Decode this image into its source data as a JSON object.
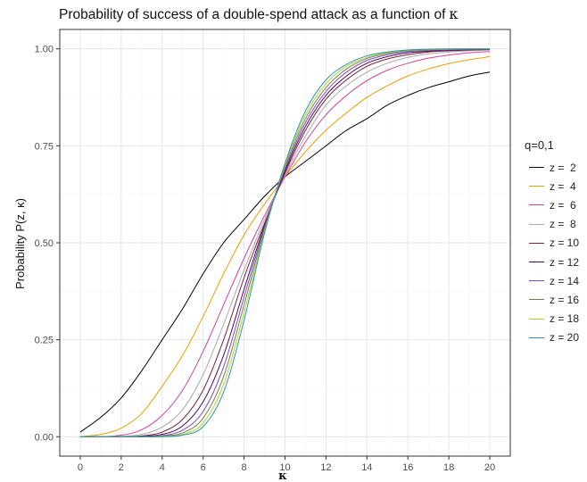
{
  "chart_data": {
    "type": "line",
    "title": "Probability of success of a double-spend attack as a function of",
    "title_symbol": "κ",
    "xlabel": "κ",
    "ylabel": "Probability  P(z, κ)",
    "xlim": [
      -1,
      21
    ],
    "ylim": [
      -0.05,
      1.05
    ],
    "x_ticks": [
      0,
      2,
      4,
      6,
      8,
      10,
      12,
      14,
      16,
      18,
      20
    ],
    "y_ticks": [
      0.0,
      0.25,
      0.5,
      0.75,
      1.0
    ],
    "y_tick_labels": [
      "0.00",
      "0.25",
      "0.50",
      "0.75",
      "1.00"
    ],
    "grid": true,
    "legend_title": "q=0,1",
    "legend_position": "right",
    "x": [
      0,
      1,
      2,
      3,
      4,
      5,
      6,
      7,
      8,
      9,
      10,
      11,
      12,
      13,
      14,
      15,
      16,
      17,
      18,
      19,
      20
    ],
    "series": [
      {
        "name": "z =  2",
        "color": "#000000",
        "values": [
          0.012,
          0.05,
          0.1,
          0.17,
          0.25,
          0.33,
          0.42,
          0.5,
          0.56,
          0.62,
          0.67,
          0.71,
          0.75,
          0.79,
          0.82,
          0.855,
          0.88,
          0.9,
          0.915,
          0.93,
          0.94
        ]
      },
      {
        "name": "z =  4",
        "color": "#e6a000",
        "values": [
          0.0,
          0.006,
          0.022,
          0.06,
          0.13,
          0.21,
          0.31,
          0.42,
          0.52,
          0.6,
          0.67,
          0.735,
          0.79,
          0.835,
          0.875,
          0.905,
          0.93,
          0.948,
          0.962,
          0.972,
          0.98
        ]
      },
      {
        "name": "z =  6",
        "color": "#d63fa0",
        "values": [
          0.0,
          0.0,
          0.004,
          0.018,
          0.055,
          0.12,
          0.22,
          0.34,
          0.46,
          0.57,
          0.67,
          0.76,
          0.83,
          0.88,
          0.918,
          0.945,
          0.963,
          0.976,
          0.984,
          0.99,
          0.993
        ]
      },
      {
        "name": "z =  8",
        "color": "#a9a9a9",
        "values": [
          0.0,
          0.0,
          0.001,
          0.006,
          0.025,
          0.07,
          0.16,
          0.29,
          0.43,
          0.56,
          0.675,
          0.775,
          0.855,
          0.905,
          0.94,
          0.963,
          0.978,
          0.987,
          0.992,
          0.995,
          0.997
        ]
      },
      {
        "name": "z = 10",
        "color": "#7a1f3d",
        "values": [
          0.0,
          0.0,
          0.0,
          0.002,
          0.012,
          0.045,
          0.12,
          0.25,
          0.41,
          0.55,
          0.68,
          0.79,
          0.87,
          0.92,
          0.955,
          0.974,
          0.985,
          0.992,
          0.995,
          0.997,
          0.998
        ]
      },
      {
        "name": "z = 12",
        "color": "#4b0a5e",
        "values": [
          0.0,
          0.0,
          0.0,
          0.001,
          0.006,
          0.028,
          0.09,
          0.21,
          0.38,
          0.545,
          0.685,
          0.8,
          0.88,
          0.93,
          0.963,
          0.98,
          0.99,
          0.994,
          0.997,
          0.998,
          0.999
        ]
      },
      {
        "name": "z = 14",
        "color": "#7b4bb8",
        "values": [
          0.0,
          0.0,
          0.0,
          0.0,
          0.003,
          0.017,
          0.065,
          0.18,
          0.36,
          0.54,
          0.69,
          0.81,
          0.89,
          0.94,
          0.97,
          0.985,
          0.993,
          0.996,
          0.998,
          0.999,
          0.999
        ]
      },
      {
        "name": "z = 16",
        "color": "#7a7a52",
        "values": [
          0.0,
          0.0,
          0.0,
          0.0,
          0.002,
          0.01,
          0.048,
          0.155,
          0.34,
          0.535,
          0.695,
          0.82,
          0.9,
          0.948,
          0.975,
          0.988,
          0.995,
          0.997,
          0.999,
          0.999,
          1.0
        ]
      },
      {
        "name": "z = 18",
        "color": "#a6d62a",
        "values": [
          0.0,
          0.0,
          0.0,
          0.0,
          0.001,
          0.006,
          0.035,
          0.135,
          0.32,
          0.53,
          0.7,
          0.83,
          0.91,
          0.955,
          0.978,
          0.99,
          0.996,
          0.998,
          0.999,
          1.0,
          1.0
        ]
      },
      {
        "name": "z = 20",
        "color": "#2c8fb8",
        "values": [
          0.0,
          0.0,
          0.0,
          0.0,
          0.0,
          0.004,
          0.026,
          0.115,
          0.3,
          0.525,
          0.705,
          0.84,
          0.92,
          0.96,
          0.982,
          0.992,
          0.997,
          0.999,
          1.0,
          1.0,
          1.0
        ]
      }
    ]
  }
}
